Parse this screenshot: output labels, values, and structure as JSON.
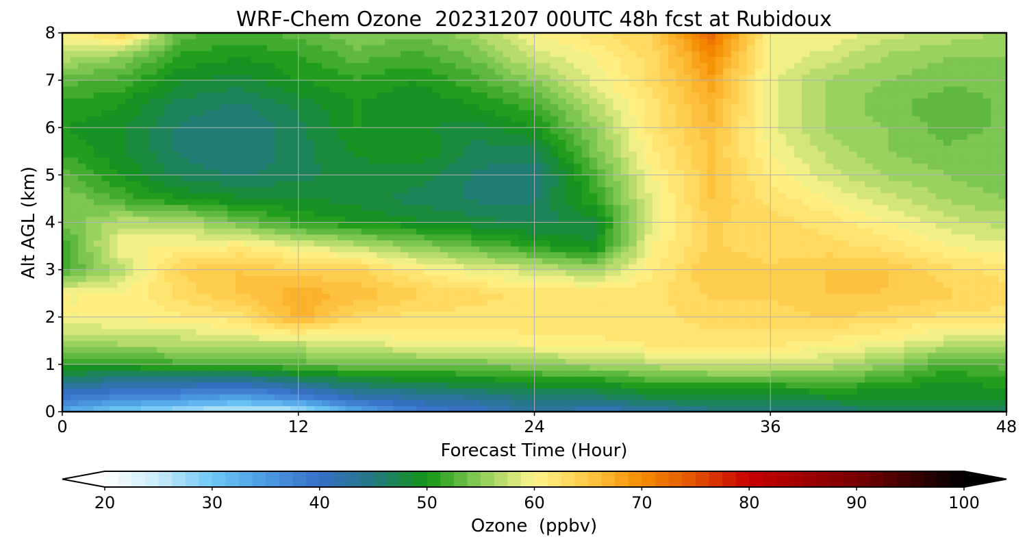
{
  "chart_data": {
    "type": "heatmap",
    "title": "WRF-Chem Ozone  20231207 00UTC 48h fcst at Rubidoux",
    "xlabel": "Forecast Time (Hour)",
    "ylabel": "Alt AGL (km)",
    "xlim": [
      0,
      48
    ],
    "ylim": [
      0,
      8
    ],
    "xticks": [
      0,
      12,
      24,
      36,
      48
    ],
    "yticks": [
      0,
      1,
      2,
      3,
      4,
      5,
      6,
      7,
      8
    ],
    "grid": true,
    "x": [
      0,
      3,
      6,
      9,
      12,
      15,
      18,
      21,
      24,
      27,
      30,
      33,
      36,
      39,
      42,
      45,
      48
    ],
    "y": [
      0,
      0.25,
      0.5,
      1,
      1.5,
      2,
      2.5,
      3,
      3.5,
      4,
      4.5,
      5,
      5.5,
      6,
      6.5,
      7,
      7.5,
      8
    ],
    "z": [
      [
        33,
        29,
        26,
        24,
        25,
        33,
        38,
        40,
        43,
        41,
        42,
        44,
        44,
        45,
        46,
        46,
        46
      ],
      [
        38,
        36,
        35,
        33,
        36,
        40,
        42,
        43,
        45,
        45,
        47,
        48,
        48,
        48,
        49,
        49,
        49
      ],
      [
        42,
        41,
        40,
        39,
        42,
        45,
        46,
        47,
        48,
        48,
        50,
        50,
        50,
        51,
        50,
        49,
        50
      ],
      [
        51,
        51,
        52,
        52,
        53,
        54,
        54,
        54,
        55,
        56,
        57,
        58,
        58,
        57,
        55,
        52,
        53
      ],
      [
        56,
        57,
        57,
        58,
        58,
        59,
        60,
        60,
        61,
        61,
        62,
        62,
        62,
        61,
        60,
        58,
        58
      ],
      [
        60,
        60,
        61,
        62,
        67,
        63,
        62,
        62,
        62,
        62,
        62,
        63,
        63,
        64,
        63,
        62,
        62
      ],
      [
        60,
        60,
        63,
        65,
        67,
        66,
        64,
        63,
        62,
        62,
        62,
        64,
        64,
        65,
        65,
        64,
        63
      ],
      [
        52,
        57,
        64,
        65,
        64,
        64,
        61,
        59,
        58,
        56,
        61,
        65,
        64,
        65,
        65,
        63,
        62
      ],
      [
        51,
        60,
        60,
        61,
        59,
        57,
        55,
        53,
        51,
        49,
        60,
        64,
        63,
        63,
        62,
        60,
        59
      ],
      [
        54,
        57,
        57,
        54,
        51,
        50,
        49,
        48,
        47,
        48,
        59,
        64,
        63,
        62,
        60,
        58,
        57
      ],
      [
        55,
        52,
        50,
        49,
        49,
        48,
        47,
        46,
        46,
        51,
        59,
        65,
        62,
        60,
        58,
        56,
        55
      ],
      [
        53,
        50,
        47,
        46,
        47,
        48,
        48,
        46,
        45,
        52,
        60,
        65,
        61,
        58,
        56,
        55,
        54
      ],
      [
        51,
        49,
        46,
        45,
        47,
        49,
        50,
        47,
        47,
        54,
        61,
        65,
        60,
        57,
        55,
        54,
        55
      ],
      [
        50,
        49,
        46,
        45,
        47,
        50,
        49,
        48,
        50,
        55,
        62,
        66,
        59,
        56,
        55,
        53,
        54
      ],
      [
        51,
        50,
        47,
        46,
        48,
        50,
        49,
        50,
        52,
        57,
        62,
        67,
        59,
        56,
        54,
        53,
        54
      ],
      [
        53,
        52,
        49,
        48,
        50,
        51,
        50,
        52,
        55,
        59,
        63,
        68,
        59,
        56,
        55,
        54,
        54
      ],
      [
        57,
        55,
        51,
        50,
        51,
        53,
        52,
        54,
        58,
        60,
        63,
        70,
        60,
        58,
        56,
        55,
        55
      ],
      [
        60,
        64,
        53,
        52,
        53,
        55,
        54,
        56,
        60,
        62,
        64,
        73,
        60,
        60,
        58,
        57,
        56
      ]
    ],
    "colorbar": {
      "label": "Ozone  (ppbv)",
      "min": 20,
      "max": 100,
      "ticks": [
        20,
        30,
        40,
        50,
        60,
        70,
        80,
        90,
        100
      ],
      "extend": "both"
    }
  }
}
